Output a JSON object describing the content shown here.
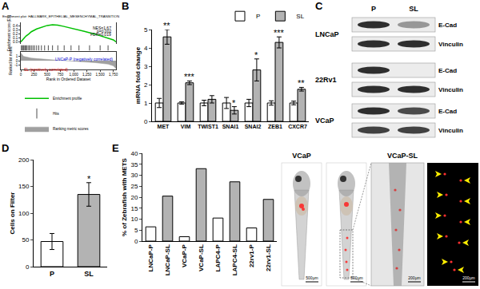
{
  "panel_labels": [
    "A",
    "B",
    "C",
    "D",
    "E"
  ],
  "chart_data": [
    {
      "type": "line",
      "title": "Enrichment plot: HALLMARK_EPITHELIAL_MESENCHYMAL_TRANSITION",
      "x_label": "Rank in Ordered Dataset",
      "y_label": "Enrichment score (ES)",
      "y2_label": "Ranked list metric",
      "xlim": [
        0,
        1800
      ],
      "xticks": [
        0,
        250,
        500,
        750,
        {
          "value": 1000,
          "label": "1,000"
        },
        {
          "value": 1250,
          "label": "1,250"
        },
        {
          "value": 1500,
          "label": "1,500"
        },
        {
          "value": 1750,
          "label": "1,750"
        }
      ],
      "ylim": [
        -0.05,
        0.5
      ],
      "yticks": [
        {
          "value": 0,
          "label": "0.0"
        },
        0.1,
        0.2,
        0.3,
        0.4
      ],
      "y2lim": [
        -2,
        2
      ],
      "y2ticks": [
        -1,
        0,
        1
      ],
      "series": [
        {
          "name": "Enrichment profile",
          "type": "line",
          "color": "#00c000",
          "x": [
            0,
            50,
            100,
            150,
            200,
            300,
            400,
            500,
            600,
            700,
            800,
            1000,
            1200,
            1400,
            1600,
            1750,
            1800
          ],
          "values": [
            0,
            0.08,
            0.15,
            0.2,
            0.26,
            0.33,
            0.38,
            0.42,
            0.44,
            0.43,
            0.4,
            0.34,
            0.27,
            0.2,
            0.12,
            0.05,
            0
          ]
        },
        {
          "name": "Hits",
          "type": "rug",
          "color": "#000000",
          "x": [
            10,
            30,
            45,
            60,
            80,
            100,
            120,
            150,
            170,
            200,
            230,
            260,
            300,
            340,
            390,
            450,
            520,
            600,
            700,
            820,
            950,
            1100,
            1300,
            1500,
            1650
          ]
        },
        {
          "name": "Ranking metric scores",
          "type": "area",
          "color": "#a0a0a0",
          "axis": "y2",
          "x": [
            0,
            50,
            200,
            400,
            700,
            900,
            1100,
            1400,
            1650,
            1750,
            1800
          ],
          "values": [
            1.8,
            1.0,
            0.6,
            0.35,
            0.1,
            -0.05,
            -0.2,
            -0.45,
            -0.8,
            -1.2,
            -1.8
          ]
        }
      ],
      "annotations": [
        {
          "text": "NES=1.67"
        },
        {
          "text": "p=0.002"
        },
        {
          "text": "FDR=0.019"
        },
        {
          "text": "SL (positively correlated)"
        },
        {
          "text": "LNCaP-P (negatively correlated)"
        }
      ],
      "legend": "bottom",
      "grid": false
    },
    {
      "type": "bar",
      "y_label": "mRNA fold change",
      "categories": [
        "MET",
        "VIM",
        "TWIST1",
        "SNAI1",
        "SNAI2",
        "ZEB1",
        "CXCR7"
      ],
      "ylim": [
        0,
        5
      ],
      "yticks": [
        0,
        1,
        2,
        3,
        4,
        5
      ],
      "legend": "top right",
      "grid": false,
      "series": [
        {
          "name": "P",
          "color": "#ffffff",
          "values": [
            1,
            1,
            1,
            1,
            1,
            1,
            1
          ],
          "error": [
            0.25,
            0.06,
            0.15,
            0.3,
            0.2,
            0.12,
            0.1
          ]
        },
        {
          "name": "SL",
          "color": "#b3b3b3",
          "values": [
            4.6,
            2.1,
            1.2,
            0.6,
            2.8,
            4.3,
            1.75
          ],
          "error": [
            0.4,
            0.1,
            0.2,
            0.2,
            0.6,
            0.3,
            0.1
          ]
        }
      ],
      "annotations": [
        {
          "category": "MET",
          "series": "SL",
          "text": "**"
        },
        {
          "category": "VIM",
          "series": "SL",
          "text": "***"
        },
        {
          "category": "SNAI1",
          "series": "SL",
          "text": "*"
        },
        {
          "category": "SNAI2",
          "series": "SL",
          "text": "*"
        },
        {
          "category": "ZEB1",
          "series": "SL",
          "text": "***"
        },
        {
          "category": "CXCR7",
          "series": "SL",
          "text": "**"
        }
      ]
    },
    {
      "type": "bar",
      "y_label": "Cells on Filter",
      "categories": [
        "P",
        "SL"
      ],
      "ylim": [
        0,
        200
      ],
      "yticks": [
        0,
        50,
        100,
        150,
        200
      ],
      "grid": false,
      "series": [
        {
          "colors": [
            "#ffffff",
            "#b3b3b3"
          ],
          "values": [
            47,
            135
          ],
          "error": [
            15,
            22
          ]
        }
      ],
      "annotations": [
        {
          "category": "SL",
          "text": "*"
        }
      ]
    },
    {
      "type": "bar",
      "y_label": "% of Zebrafish with METS",
      "categories": [
        "LNCaP-P",
        "LNCaP-SL",
        "VCaP-P",
        "VCaP-SL",
        "LAPC4-P",
        "LAPC4-SL",
        "22rv1-P",
        "22rv1-SL"
      ],
      "ylim": [
        0,
        40
      ],
      "yticks": [
        0,
        5,
        10,
        15,
        20,
        25,
        30,
        35,
        40
      ],
      "grid": false,
      "series": [
        {
          "colors": [
            "#ffffff",
            "#b3b3b3",
            "#ffffff",
            "#b3b3b3",
            "#ffffff",
            "#b3b3b3",
            "#ffffff",
            "#b3b3b3"
          ],
          "values": [
            6.5,
            20.5,
            2,
            33,
            10.5,
            27,
            6,
            19
          ]
        }
      ]
    }
  ],
  "blots": {
    "columns": [
      "P",
      "SL"
    ],
    "groups": [
      {
        "name": "LNCaP",
        "rows": [
          {
            "label": "E-Cad",
            "intensity": [
              1,
              0.45
            ]
          },
          {
            "label": "Vinculin",
            "intensity": [
              1,
              1
            ]
          }
        ]
      },
      {
        "name": "22Rv1",
        "rows": [
          {
            "label": "E-Cad",
            "intensity": [
              1,
              0
            ]
          },
          {
            "label": "Vinculin",
            "intensity": [
              1,
              1
            ]
          }
        ]
      },
      {
        "name": "VCaP",
        "rows": [
          {
            "label": "E-Cad",
            "intensity": [
              1,
              0.85
            ]
          },
          {
            "label": "Vinculin",
            "intensity": [
              0.9,
              0.9
            ]
          }
        ]
      }
    ]
  },
  "zebrafish": [
    {
      "label": "VCaP",
      "scale_bar": "500µm"
    },
    {
      "label": "VCaP-SL",
      "scale_bar": "500µm"
    },
    {
      "scale_bar": "200µm"
    },
    {
      "scale_bar": "200µm"
    }
  ]
}
